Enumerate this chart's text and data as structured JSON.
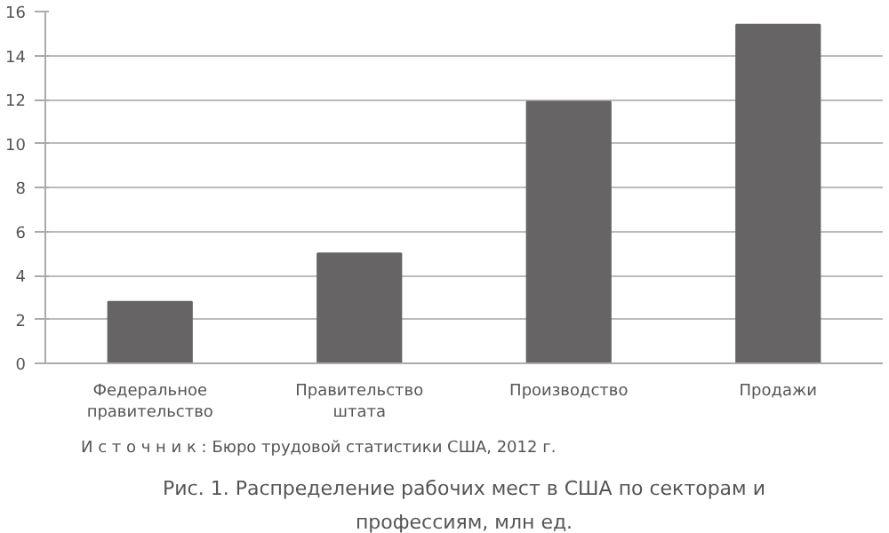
{
  "chart_data": {
    "type": "bar",
    "title": "Рис. 1. Распределение рабочих мест в США по секторам и профессиям, млн ед.",
    "categories": [
      "Федеральное правительство",
      "Правительство штата",
      "Производство",
      "Продажи"
    ],
    "values": [
      2.8,
      5.0,
      11.9,
      15.4
    ],
    "color": "#666465",
    "ylim": [
      0,
      16
    ],
    "yticks": [
      0,
      2,
      4,
      6,
      8,
      10,
      12,
      14,
      16
    ],
    "grid": "y",
    "annotations": [
      "И с т о ч н и к :  Бюро трудовой статистики США, 2012 г."
    ]
  }
}
